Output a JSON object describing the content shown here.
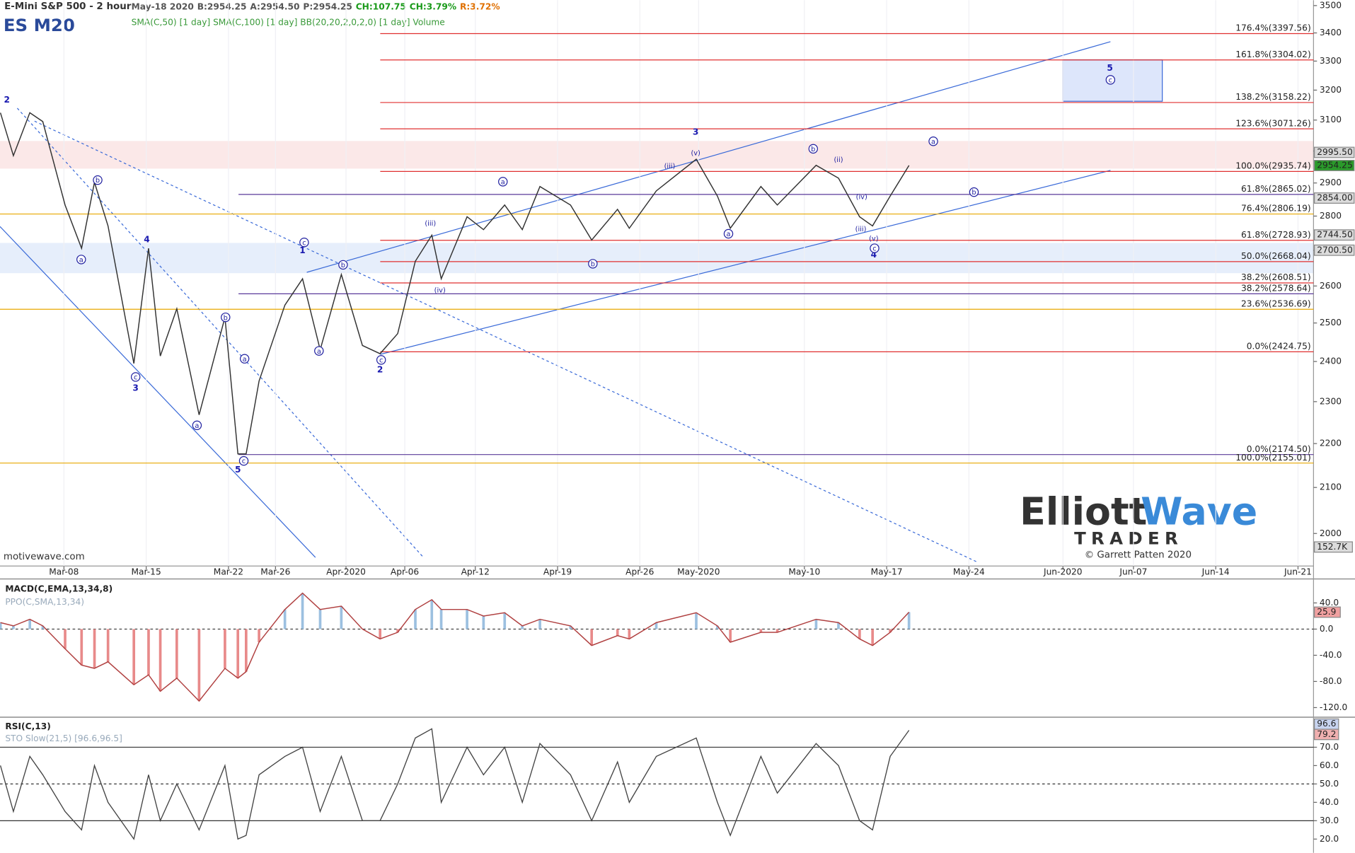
{
  "chart_data": [
    {
      "type": "line",
      "title": "E-Mini S&P 500 - 2 hour",
      "symbol": "ES M20",
      "quote": [
        {
          "text": "May-18 2020",
          "color": "#555555"
        },
        {
          "text": "B:2954.25",
          "color": "#555555"
        },
        {
          "text": "A:2954.50",
          "color": "#555555"
        },
        {
          "text": "P:2954.25",
          "color": "#555555"
        },
        {
          "text": "CH:107.75",
          "color": "#1a9a1a"
        },
        {
          "text": "CH:3.79%",
          "color": "#1a9a1a"
        },
        {
          "text": "R:3.72%",
          "color": "#e07000"
        }
      ],
      "indicators": "SMA(C,50) [1 day] SMA(C,100) [1 day] BB(20,20,2,0,2,0) [1 day] Volume",
      "watermark": "motivewave.com",
      "volume_label": "152.7K",
      "logo": {
        "name1": "Elliott",
        "name2": "Wave",
        "name3": "TRADER",
        "credit": "© Garrett Patten 2020"
      },
      "log_scale": true,
      "color": "#333333",
      "x": [
        -5.4,
        -4.3,
        -2.9,
        -1.8,
        0.1,
        1.5,
        2.6,
        3.75,
        5.95,
        7.2,
        8.2,
        9.6,
        11.5,
        13.7,
        14.8,
        15.5,
        16.6,
        18.8,
        20.3,
        21.8,
        23.6,
        25.4,
        26.9,
        28.4,
        29.9,
        31.3,
        32.1,
        34.3,
        35.7,
        37.5,
        39.0,
        40.5,
        43.1,
        44.9,
        47.1,
        48.1,
        50.4,
        53.8,
        55.6,
        56.7,
        59.3,
        60.7,
        64.0,
        65.9,
        67.7,
        68.8,
        70.3,
        71.9
      ],
      "values": [
        3124,
        2985,
        3124,
        3095,
        2833,
        2706,
        2902,
        2771,
        2395,
        2706,
        2414,
        2538,
        2268,
        2515,
        2176,
        2176,
        2351,
        2548,
        2620,
        2430,
        2632,
        2441,
        2420,
        2472,
        2669,
        2744,
        2620,
        2798,
        2760,
        2833,
        2760,
        2889,
        2833,
        2730,
        2820,
        2764,
        2876,
        2974,
        2860,
        2764,
        2889,
        2833,
        2955,
        2915,
        2798,
        2771,
        2860,
        2954.25
      ],
      "xlim": [
        -5.44,
        106.32
      ],
      "xticks": [
        {
          "value": 0,
          "label": "Mar-08"
        },
        {
          "value": 7,
          "label": "Mar-15"
        },
        {
          "value": 14,
          "label": "Mar-22"
        },
        {
          "value": 18,
          "label": "Mar-26"
        },
        {
          "value": 24,
          "label": "Apr-2020"
        },
        {
          "value": 29,
          "label": "Apr-06"
        },
        {
          "value": 35,
          "label": "Apr-12"
        },
        {
          "value": 42,
          "label": "Apr-19"
        },
        {
          "value": 49,
          "label": "Apr-26"
        },
        {
          "value": 54,
          "label": "May-2020"
        },
        {
          "value": 63,
          "label": "May-10"
        },
        {
          "value": 70,
          "label": "May-17"
        },
        {
          "value": 77,
          "label": "May-24"
        },
        {
          "value": 85,
          "label": "Jun-2020"
        },
        {
          "value": 91,
          "label": "Jun-07"
        },
        {
          "value": 98,
          "label": "Jun-14"
        },
        {
          "value": 105,
          "label": "Jun-21"
        }
      ],
      "ylim": [
        1950,
        3520
      ],
      "yticks": [
        2000,
        2100,
        2200,
        2300,
        2400,
        2500,
        2600,
        2700,
        2800,
        2900,
        3000,
        3100,
        3200,
        3300,
        3400,
        3500
      ],
      "levels": [
        {
          "label": "176.4%(3397.56)",
          "value": 3397.56,
          "color": "#e03030"
        },
        {
          "label": "161.8%(3304.02)",
          "value": 3304.02,
          "color": "#e03030"
        },
        {
          "label": "138.2%(3158.22)",
          "value": 3158.22,
          "color": "#e03030"
        },
        {
          "label": "123.6%(3071.26)",
          "value": 3071.26,
          "color": "#e03030"
        },
        {
          "label": "100.0%(2935.74)",
          "value": 2935.74,
          "color": "#e03030"
        },
        {
          "label": "61.8%(2865.02)",
          "value": 2865.02,
          "color": "#5a3a9a"
        },
        {
          "label": "76.4%(2806.19)",
          "value": 2806.19,
          "color": "#e8a800"
        },
        {
          "label": "61.8%(2728.93)",
          "value": 2728.93,
          "color": "#e03030"
        },
        {
          "label": "50.0%(2668.04)",
          "value": 2668.04,
          "color": "#e03030"
        },
        {
          "label": "38.2%(2608.51)",
          "value": 2608.51,
          "color": "#e03030"
        },
        {
          "label": "38.2%(2578.64)",
          "value": 2578.64,
          "color": "#5a3a9a"
        },
        {
          "label": "23.6%(2536.69)",
          "value": 2536.69,
          "color": "#e8a800"
        },
        {
          "label": "0.0%(2424.75)",
          "value": 2424.75,
          "color": "#e03030"
        },
        {
          "label": "0.0%(2174.50)",
          "value": 2174.5,
          "color": "#5a3a9a"
        },
        {
          "label": "100.0%(2155.01)",
          "value": 2155.01,
          "color": "#e8a800"
        }
      ],
      "badges": [
        {
          "value": 2995.5,
          "label": "2995.50",
          "color": "#d8d8d8"
        },
        {
          "value": 2954.25,
          "label": "2954.25",
          "color": "#2a9a2a"
        },
        {
          "value": 2854,
          "label": "2854.00",
          "color": "#dcdcdc"
        },
        {
          "value": 2744.5,
          "label": "2744.50",
          "color": "#dcdcdc"
        },
        {
          "value": 2700.5,
          "label": "2700.50",
          "color": "#dcdcdc"
        }
      ],
      "wave_labels": [
        {
          "text": "2",
          "x": -4.85,
          "y": 3168,
          "circle": false
        },
        {
          "text": "4",
          "x": 7.05,
          "y": 2732,
          "circle": false
        },
        {
          "text": "3",
          "x": 6.1,
          "y": 2334,
          "circle": false
        },
        {
          "text": "1",
          "x": 20.3,
          "y": 2700,
          "circle": false
        },
        {
          "text": "2",
          "x": 26.9,
          "y": 2380,
          "circle": false
        },
        {
          "text": "3",
          "x": 53.75,
          "y": 3062,
          "circle": false
        },
        {
          "text": "4",
          "x": 68.9,
          "y": 2688,
          "circle": false
        },
        {
          "text": "5",
          "x": 89.0,
          "y": 3277,
          "circle": false
        },
        {
          "text": "5",
          "x": 14.8,
          "y": 2140,
          "circle": false
        },
        {
          "text": "a",
          "x": 1.47,
          "y": 2674,
          "circle": true
        },
        {
          "text": "b",
          "x": 2.87,
          "y": 2909,
          "circle": true
        },
        {
          "text": "c",
          "x": 6.1,
          "y": 2361,
          "circle": true
        },
        {
          "text": "a",
          "x": 11.32,
          "y": 2243,
          "circle": true
        },
        {
          "text": "b",
          "x": 13.75,
          "y": 2515,
          "circle": true
        },
        {
          "text": "c",
          "x": 15.3,
          "y": 2160,
          "circle": true
        },
        {
          "text": "a",
          "x": 15.37,
          "y": 2407,
          "circle": true
        },
        {
          "text": "c",
          "x": 20.44,
          "y": 2723,
          "circle": true
        },
        {
          "text": "a",
          "x": 21.7,
          "y": 2427,
          "circle": true
        },
        {
          "text": "b",
          "x": 23.75,
          "y": 2659,
          "circle": true
        },
        {
          "text": "c",
          "x": 26.99,
          "y": 2404,
          "circle": true
        },
        {
          "text": "a",
          "x": 37.35,
          "y": 2904,
          "circle": true
        },
        {
          "text": "b",
          "x": 45.0,
          "y": 2662,
          "circle": true
        },
        {
          "text": "a",
          "x": 56.54,
          "y": 2748,
          "circle": true
        },
        {
          "text": "b",
          "x": 63.75,
          "y": 3007,
          "circle": true
        },
        {
          "text": "c",
          "x": 68.97,
          "y": 2706,
          "circle": true
        },
        {
          "text": "a",
          "x": 73.97,
          "y": 3031,
          "circle": true
        },
        {
          "text": "b",
          "x": 77.43,
          "y": 2872,
          "circle": true
        },
        {
          "text": "c",
          "x": 89.04,
          "y": 3235,
          "circle": true
        },
        {
          "text": "(iii)",
          "x": 31.18,
          "y": 2779,
          "circle": false
        },
        {
          "text": "(iv)",
          "x": 31.99,
          "y": 2589,
          "circle": false
        },
        {
          "text": "(v)",
          "x": 53.75,
          "y": 2995,
          "circle": false
        },
        {
          "text": "(iii)",
          "x": 51.54,
          "y": 2953,
          "circle": false
        },
        {
          "text": "(ii)",
          "x": 65.9,
          "y": 2973,
          "circle": false
        },
        {
          "text": "(iv)",
          "x": 67.87,
          "y": 2859,
          "circle": false
        },
        {
          "text": "(iii)",
          "x": 67.8,
          "y": 2763,
          "circle": false
        },
        {
          "text": "(v)",
          "x": 68.9,
          "y": 2735,
          "circle": false
        }
      ]
    },
    {
      "type": "macd",
      "title": "MACD(C,EMA,13,34,8)",
      "subtitle": "PPO(C,SMA,13,34)",
      "color": "#b04040",
      "values": [
        10,
        5,
        15,
        5,
        -30,
        -55,
        -60,
        -50,
        -85,
        -70,
        -95,
        -75,
        -110,
        -60,
        -75,
        -65,
        -20,
        30,
        55,
        30,
        35,
        0,
        -15,
        -5,
        30,
        45,
        30,
        30,
        20,
        25,
        5,
        15,
        5,
        -25,
        -10,
        -15,
        10,
        25,
        5,
        -20,
        -5,
        -5,
        15,
        10,
        -15,
        -25,
        -5,
        25.9
      ],
      "ylim": [
        -132,
        74
      ],
      "yticks": [
        {
          "value": 40,
          "label": "40.0"
        },
        {
          "value": 0,
          "label": "0.0"
        },
        {
          "value": -40,
          "label": "-40.0"
        },
        {
          "value": -80,
          "label": "-80.0"
        },
        {
          "value": -120,
          "label": "-120.0"
        }
      ],
      "badge": 25.9
    },
    {
      "type": "rsi",
      "title": "RSI(C,13)",
      "subtitle": "STO Slow(21,5) [96.6,96.5]",
      "color": "#444444",
      "values": [
        60,
        35,
        65,
        55,
        35,
        25,
        60,
        40,
        20,
        55,
        30,
        50,
        25,
        60,
        20,
        22,
        55,
        65,
        70,
        35,
        65,
        30,
        30,
        50,
        75,
        80,
        40,
        70,
        55,
        70,
        40,
        72,
        55,
        30,
        62,
        40,
        65,
        75,
        40,
        22,
        65,
        45,
        72,
        60,
        30,
        25,
        65,
        79.2
      ],
      "ylim": [
        13,
        84
      ],
      "yticks": [
        {
          "value": 70,
          "label": "70.0"
        },
        {
          "value": 60,
          "label": "60.0"
        },
        {
          "value": 50,
          "label": "50.0"
        },
        {
          "value": 40,
          "label": "40.0"
        },
        {
          "value": 30,
          "label": "30.0"
        },
        {
          "value": 20,
          "label": "20.0"
        }
      ],
      "badges": [
        96.6,
        79.2
      ]
    }
  ]
}
